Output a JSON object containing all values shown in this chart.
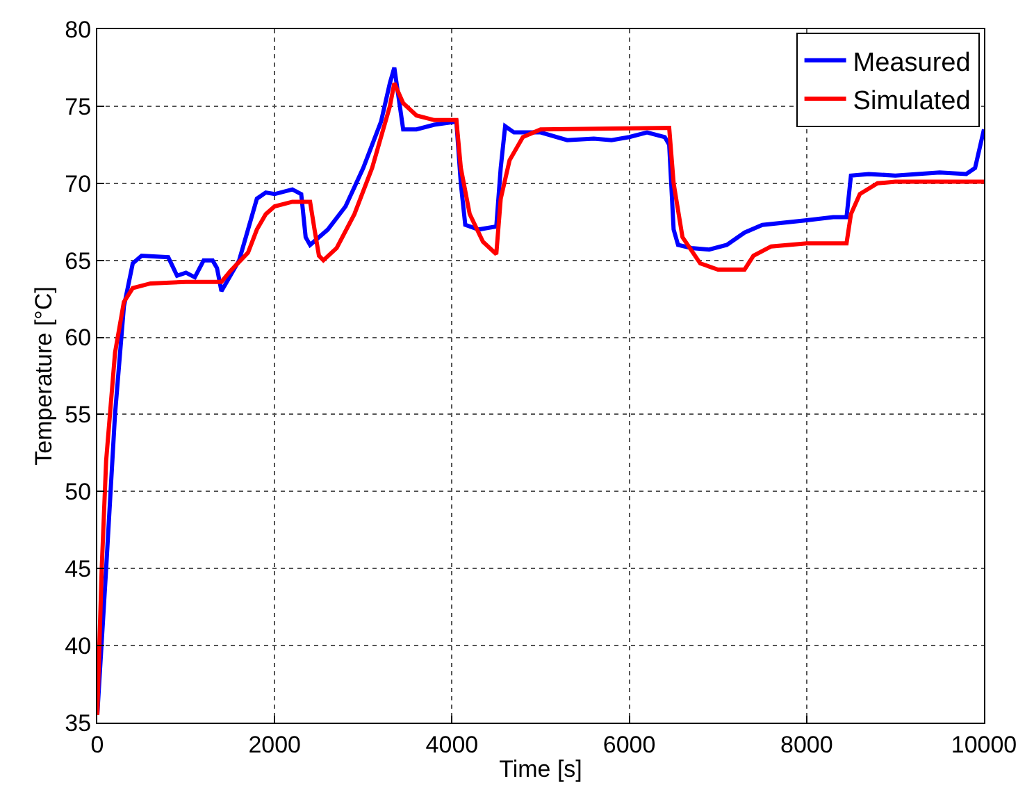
{
  "chart_data": {
    "type": "line",
    "xlabel": "Time [s]",
    "ylabel": "Temperature [°C]",
    "xlim": [
      0,
      10000
    ],
    "xticks": [
      0,
      2000,
      4000,
      6000,
      8000,
      10000
    ],
    "ylim": [
      35,
      80
    ],
    "yticks": [
      35,
      40,
      45,
      50,
      55,
      60,
      65,
      70,
      75,
      80
    ],
    "grid": true,
    "legend": "top right",
    "line_style": "solid",
    "marker": "none",
    "series": [
      {
        "name": "Measured",
        "color": "#0000ff",
        "x": [
          0,
          100,
          200,
          300,
          400,
          500,
          800,
          900,
          1000,
          1100,
          1200,
          1300,
          1350,
          1400,
          1450,
          1600,
          1700,
          1800,
          1900,
          2000,
          2200,
          2300,
          2350,
          2400,
          2600,
          2800,
          3000,
          3200,
          3300,
          3350,
          3450,
          3600,
          3800,
          4050,
          4100,
          4150,
          4300,
          4500,
          4550,
          4600,
          4700,
          5000,
          5300,
          5600,
          5800,
          6000,
          6200,
          6400,
          6450,
          6500,
          6550,
          6700,
          6900,
          7100,
          7300,
          7500,
          8000,
          8300,
          8450,
          8500,
          8700,
          9000,
          9500,
          9800,
          9900,
          10000
        ],
        "values": [
          35.5,
          45,
          55,
          62,
          64.8,
          65.3,
          65.2,
          64,
          64.2,
          63.9,
          65,
          65,
          64.5,
          63,
          63.5,
          65,
          67,
          69,
          69.4,
          69.3,
          69.6,
          69.3,
          66.5,
          66,
          67,
          68.5,
          71,
          74,
          76.5,
          77.5,
          73.5,
          73.5,
          73.8,
          74,
          70,
          67.3,
          67,
          67.2,
          71,
          73.7,
          73.3,
          73.3,
          72.8,
          72.9,
          72.8,
          73,
          73.3,
          73,
          72.5,
          67,
          66,
          65.8,
          65.7,
          66,
          66.8,
          67.3,
          67.6,
          67.8,
          67.8,
          70.5,
          70.6,
          70.5,
          70.7,
          70.6,
          71,
          73.5
        ]
      },
      {
        "name": "Simulated",
        "color": "#ff0000",
        "x": [
          0,
          50,
          100,
          200,
          300,
          400,
          600,
          1000,
          1400,
          1500,
          1600,
          1700,
          1800,
          1900,
          2000,
          2200,
          2400,
          2450,
          2500,
          2550,
          2700,
          2900,
          3100,
          3300,
          3350,
          3450,
          3600,
          3800,
          4050,
          4100,
          4200,
          4350,
          4500,
          4550,
          4650,
          4800,
          5000,
          6450,
          6500,
          6600,
          6800,
          7000,
          7300,
          7400,
          7600,
          8000,
          8450,
          8500,
          8600,
          8800,
          9000,
          10000
        ],
        "values": [
          35.5,
          45,
          52,
          59,
          62.3,
          63.2,
          63.5,
          63.6,
          63.6,
          64.3,
          64.9,
          65.5,
          67,
          68,
          68.5,
          68.8,
          68.8,
          67,
          65.3,
          65,
          65.8,
          68,
          71,
          75,
          76.5,
          75.2,
          74.4,
          74.1,
          74.1,
          71,
          68,
          66.2,
          65.4,
          69,
          71.5,
          73,
          73.5,
          73.6,
          70,
          66.5,
          64.8,
          64.4,
          64.4,
          65.3,
          65.9,
          66.1,
          66.1,
          68,
          69.3,
          70,
          70.1,
          70.1
        ]
      }
    ]
  }
}
